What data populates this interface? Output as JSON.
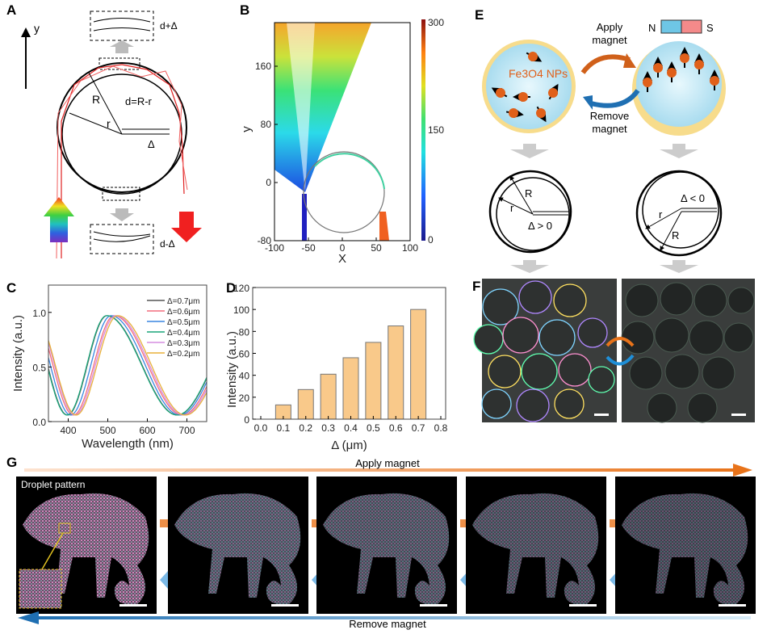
{
  "panel_labels": {
    "a": "A",
    "b": "B",
    "c": "C",
    "d": "D",
    "e": "E",
    "f": "F",
    "g": "G"
  },
  "panel_a": {
    "y_axis": "y",
    "top_gap": "d+Δ",
    "bottom_gap": "d-Δ",
    "R": "R",
    "r": "r",
    "d_formula": "d=R-r",
    "delta": "Δ"
  },
  "panel_b": {
    "xlabel": "X",
    "ylabel": "y",
    "xticks": [
      "-100",
      "-50",
      "0",
      "50",
      "100"
    ],
    "yticks": [
      "-80",
      "0",
      "80",
      "160"
    ],
    "colorbar_ticks": [
      "0",
      "150",
      "300"
    ]
  },
  "panel_e": {
    "apply_line1": "Apply",
    "apply_line2": "magnet",
    "remove_line1": "Remove",
    "remove_line2": "magnet",
    "np_label": "Fe3O4 NPs",
    "magnet_n": "N",
    "magnet_s": "S",
    "left_R": "R",
    "left_r": "r",
    "left_delta": "Δ > 0",
    "right_R": "R",
    "right_r": "r",
    "right_delta": "Δ < 0",
    "np_color": "#e0601a",
    "shell_color": "#f7dc8c",
    "core_color": "#bfe6f4"
  },
  "panel_g": {
    "pattern_label": "Droplet pattern",
    "apply_label": "Apply magnet",
    "remove_label": "Remove magnet",
    "apply_color": "#e8731a",
    "remove_color": "#1f6fb2"
  },
  "chart_data": [
    {
      "id": "C",
      "type": "line",
      "xlabel": "Wavelength (nm)",
      "ylabel": "Intensity (a.u.)",
      "xlim": [
        350,
        750
      ],
      "ylim": [
        0,
        1.25
      ],
      "xticks": [
        "400",
        "500",
        "600",
        "700"
      ],
      "yticks": [
        "0.0",
        "0.5",
        "1.0"
      ],
      "legend_position": "top-right",
      "series": [
        {
          "name": "Δ=0.7μm",
          "color": "#555555",
          "peak_nm": 498,
          "min_nm": [
            398,
            676
          ],
          "max": 0.97,
          "min": 0.06
        },
        {
          "name": "Δ=0.6μm",
          "color": "#f26d7d",
          "peak_nm": 516,
          "min_nm": [
            413,
            688
          ],
          "max": 0.97,
          "min": 0.06
        },
        {
          "name": "Δ=0.5μm",
          "color": "#3a86e0",
          "peak_nm": 508,
          "min_nm": [
            406,
            682
          ],
          "max": 0.97,
          "min": 0.06
        },
        {
          "name": "Δ=0.4μm",
          "color": "#1aa67a",
          "peak_nm": 497,
          "min_nm": [
            397,
            675
          ],
          "max": 0.97,
          "min": 0.06
        },
        {
          "name": "Δ=0.3μm",
          "color": "#d58ee0",
          "peak_nm": 520,
          "min_nm": [
            417,
            692
          ],
          "max": 0.97,
          "min": 0.06
        },
        {
          "name": "Δ=0.2μm",
          "color": "#e8b13a",
          "peak_nm": 525,
          "min_nm": [
            420,
            696
          ],
          "max": 0.97,
          "min": 0.06
        }
      ]
    },
    {
      "id": "D",
      "type": "bar",
      "xlabel": "Δ (μm)",
      "ylabel": "Intensity (a.u.)",
      "xlim": [
        0,
        0.8
      ],
      "ylim": [
        0,
        120
      ],
      "xticks": [
        "0.0",
        "0.1",
        "0.2",
        "0.3",
        "0.4",
        "0.5",
        "0.6",
        "0.7",
        "0.8"
      ],
      "yticks": [
        "0",
        "20",
        "40",
        "60",
        "80",
        "100",
        "120"
      ],
      "x": [
        0.1,
        0.2,
        0.3,
        0.4,
        0.5,
        0.6,
        0.7
      ],
      "values": [
        13,
        27,
        41,
        56,
        70,
        85,
        100
      ],
      "bar_color": "#f9c98a"
    }
  ]
}
